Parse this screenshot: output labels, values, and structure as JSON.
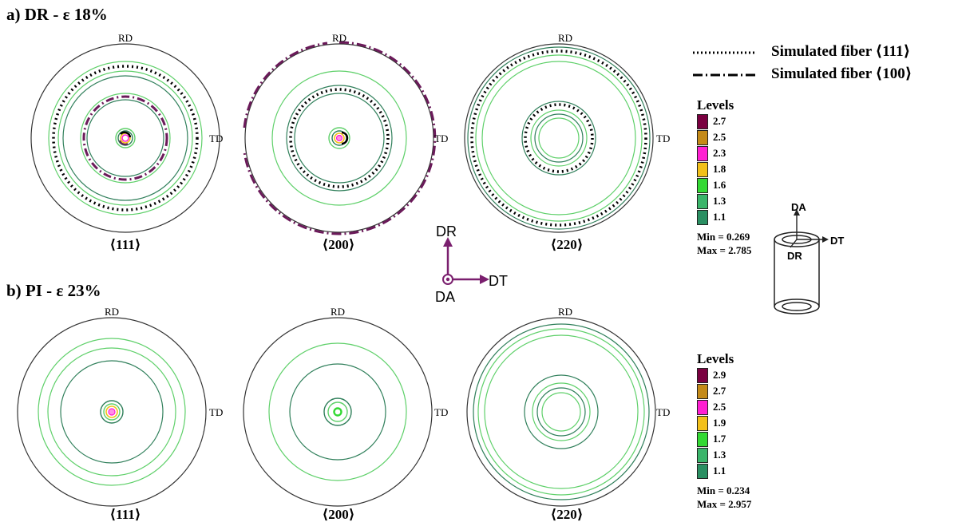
{
  "panels": {
    "a": {
      "title": "a) DR - ε  18%",
      "figures": [
        {
          "caption": "⟨111⟩",
          "rd": "RD",
          "td": "TD"
        },
        {
          "caption": "⟨200⟩",
          "rd": "RD",
          "td": "TD"
        },
        {
          "caption": "⟨220⟩",
          "rd": "RD",
          "td": "TD"
        }
      ],
      "levels": {
        "title": "Levels",
        "items": [
          {
            "label": "2.7",
            "color": "#7a0040"
          },
          {
            "label": "2.5",
            "color": "#c48a18"
          },
          {
            "label": "2.3",
            "color": "#ff1fd2"
          },
          {
            "label": "1.8",
            "color": "#f2c01a"
          },
          {
            "label": "1.6",
            "color": "#33d933"
          },
          {
            "label": "1.3",
            "color": "#3ab56a"
          },
          {
            "label": "1.1",
            "color": "#2a8f62"
          }
        ],
        "min": "Min = 0.269",
        "max": "Max = 2.785"
      }
    },
    "b": {
      "title": "b) PI - ε  23%",
      "figures": [
        {
          "caption": "⟨111⟩",
          "rd": "RD",
          "td": "TD"
        },
        {
          "caption": "⟨200⟩",
          "rd": "RD",
          "td": "TD"
        },
        {
          "caption": "⟨220⟩",
          "rd": "RD",
          "td": "TD"
        }
      ],
      "levels": {
        "title": "Levels",
        "items": [
          {
            "label": "2.9",
            "color": "#7a0040"
          },
          {
            "label": "2.7",
            "color": "#c48a18"
          },
          {
            "label": "2.5",
            "color": "#ff1fd2"
          },
          {
            "label": "1.9",
            "color": "#f2c01a"
          },
          {
            "label": "1.7",
            "color": "#33d933"
          },
          {
            "label": "1.3",
            "color": "#3ab56a"
          },
          {
            "label": "1.1",
            "color": "#2a8f62"
          }
        ],
        "min": "Min = 0.234",
        "max": "Max = 2.957"
      }
    }
  },
  "fiber_legend": {
    "fiber_111": "Simulated fiber ⟨111⟩",
    "fiber_100": "Simulated fiber ⟨100⟩"
  },
  "axes": {
    "dr": "DR",
    "dt": "DT",
    "da": "DA",
    "color": "#7a1f6e"
  },
  "cylinder": {
    "da": "DA",
    "dt": "DT",
    "dr": "DR"
  },
  "colors": {
    "contour_light": "#5fd06a",
    "contour_dark": "#2f7f5a",
    "fiber_100": "#6b1a5a",
    "outline": "#333333"
  }
}
